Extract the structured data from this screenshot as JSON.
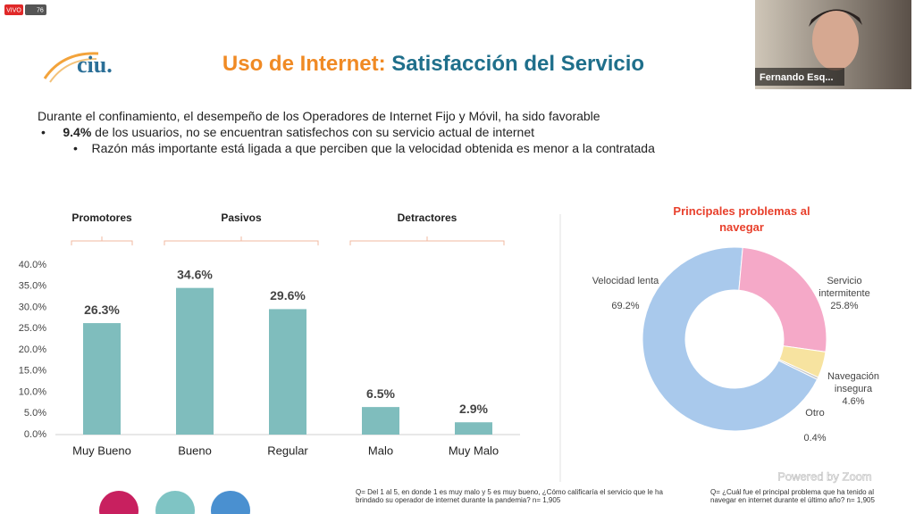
{
  "zoom": {
    "live_badge": "VIVO",
    "viewers": "76",
    "participant_name": "Fernando Esq...",
    "watermark": "Powered by Zoom"
  },
  "slide": {
    "logo": "ciu.",
    "title_part1": "Uso de Internet:",
    "title_part2": "Satisfacción del Servicio",
    "intro": "Durante el confinamiento, el desempeño de los Operadores de Internet Fijo y Móvil, ha sido favorable",
    "bullet_bold": "9.4%",
    "bullet_text": "de los usuarios, no se encuentran satisfechos con su servicio actual de internet",
    "sub_bullet": "Razón más importante está ligada a que perciben que la velocidad obtenida es menor a la contratada",
    "groups": [
      "Promotores",
      "Pasivos",
      "Detractores"
    ],
    "note_left": "Q= Del 1 al 5, en donde 1 es muy malo y 5 es muy bueno, ¿Cómo calificaría el servicio que le ha brindado su operador de internet durante la pandemia? n= 1,905",
    "note_right": "Q= ¿Cuál fue el principal problema que ha tenido al navegar en internet durante el último año? n= 1,905"
  },
  "chart_data": [
    {
      "type": "bar",
      "categories": [
        "Muy Bueno",
        "Bueno",
        "Regular",
        "Malo",
        "Muy Malo"
      ],
      "values": [
        26.3,
        34.6,
        29.6,
        6.5,
        2.9
      ],
      "value_labels": [
        "26.3%",
        "34.6%",
        "29.6%",
        "6.5%",
        "2.9%"
      ],
      "color": "#7fbdbd",
      "ylim": [
        0,
        40
      ],
      "yticks": [
        {
          "value": 0,
          "label": "0.0%"
        },
        {
          "value": 5,
          "label": "5.0%"
        },
        {
          "value": 10,
          "label": "10.0%"
        },
        {
          "value": 15,
          "label": "15.0%"
        },
        {
          "value": 20,
          "label": "20.0%"
        },
        {
          "value": 25,
          "label": "25.0%"
        },
        {
          "value": 30,
          "label": "30.0%"
        },
        {
          "value": 35,
          "label": "35.0%"
        },
        {
          "value": 40,
          "label": "40.0%"
        }
      ]
    },
    {
      "type": "donut",
      "title": "Principales problemas al navegar",
      "categories": [
        "Velocidad lenta",
        "Servicio intermitente",
        "Navegación insegura",
        "Otro"
      ],
      "values": [
        69.2,
        25.8,
        4.6,
        0.4
      ],
      "value_labels": [
        "69.2%",
        "25.8%",
        "4.6%",
        "0.4%"
      ],
      "colors": [
        "#a9c9ec",
        "#f5a9c8",
        "#f7e3a0",
        "#c8c8c8"
      ]
    }
  ]
}
